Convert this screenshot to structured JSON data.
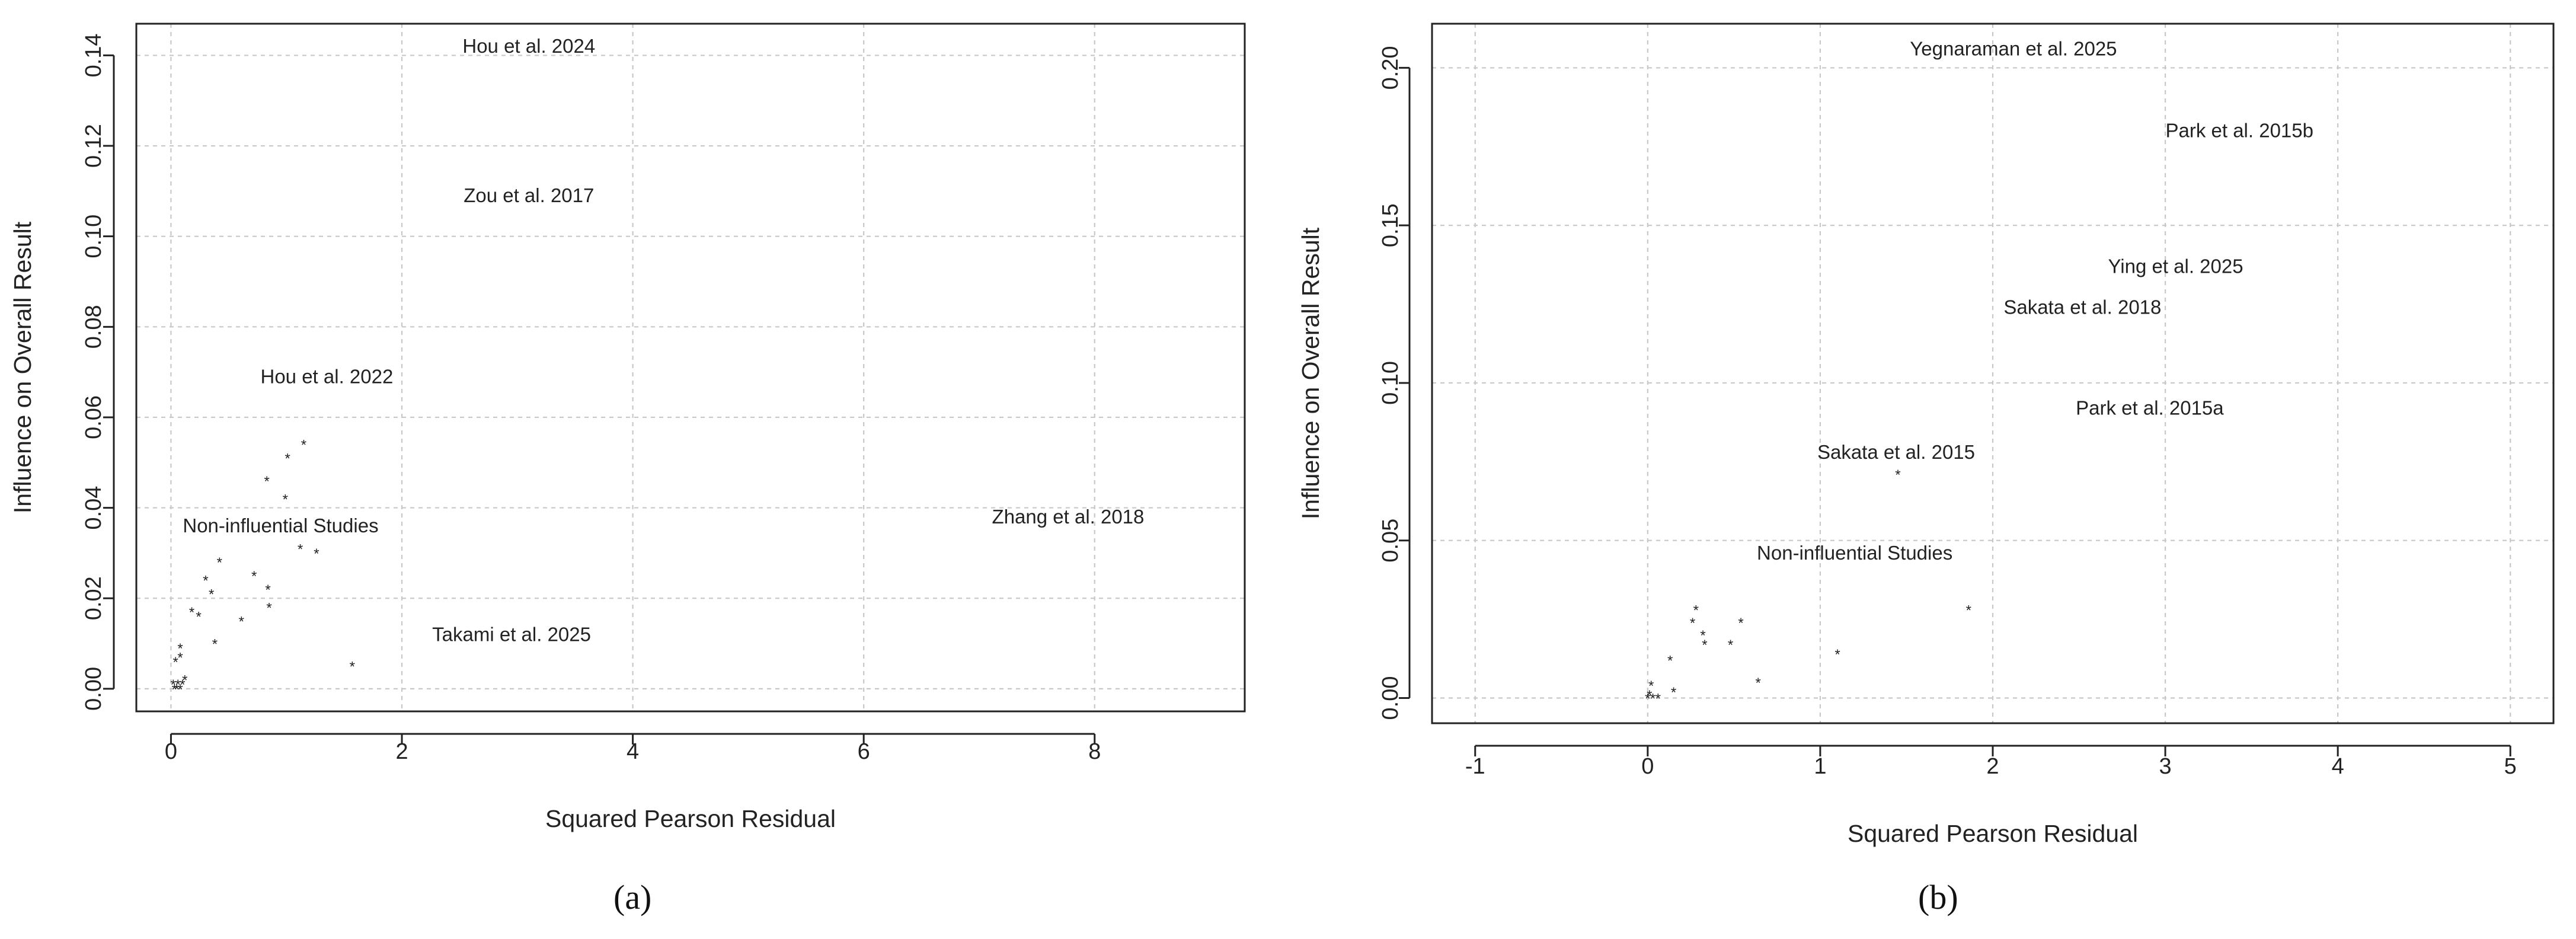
{
  "chart_data": [
    {
      "panel": "a",
      "type": "scatter",
      "panel_label": "(a)",
      "xlabel": "Squared Pearson Residual",
      "ylabel": "Influence on Overall Result",
      "xlim": [
        -0.3,
        9.3
      ],
      "ylim": [
        -0.005,
        0.147
      ],
      "xticks": [
        0,
        2,
        4,
        6,
        8
      ],
      "yticks": [
        0.0,
        0.02,
        0.04,
        0.06,
        0.08,
        0.1,
        0.12,
        0.14
      ],
      "xtick_labels": [
        "0",
        "2",
        "4",
        "6",
        "8"
      ],
      "ytick_labels": [
        "0.00",
        "0.02",
        "0.04",
        "0.06",
        "0.08",
        "0.10",
        "0.12",
        "0.14"
      ],
      "grid": true,
      "marker": "*",
      "points": [
        {
          "x": 0.02,
          "y": 0.001
        },
        {
          "x": 0.03,
          "y": 0.0
        },
        {
          "x": 0.05,
          "y": 0.0
        },
        {
          "x": 0.06,
          "y": 0.001
        },
        {
          "x": 0.08,
          "y": 0.0
        },
        {
          "x": 0.1,
          "y": 0.001
        },
        {
          "x": 0.12,
          "y": 0.002
        },
        {
          "x": 0.04,
          "y": 0.006
        },
        {
          "x": 0.08,
          "y": 0.007
        },
        {
          "x": 0.08,
          "y": 0.009
        },
        {
          "x": 0.18,
          "y": 0.017
        },
        {
          "x": 0.24,
          "y": 0.016
        },
        {
          "x": 0.3,
          "y": 0.024
        },
        {
          "x": 0.35,
          "y": 0.021
        },
        {
          "x": 0.38,
          "y": 0.01
        },
        {
          "x": 0.42,
          "y": 0.028
        },
        {
          "x": 0.61,
          "y": 0.015
        },
        {
          "x": 0.72,
          "y": 0.025
        },
        {
          "x": 0.83,
          "y": 0.046
        },
        {
          "x": 0.84,
          "y": 0.022
        },
        {
          "x": 0.85,
          "y": 0.018
        },
        {
          "x": 0.99,
          "y": 0.042
        },
        {
          "x": 1.01,
          "y": 0.051
        },
        {
          "x": 1.12,
          "y": 0.031
        },
        {
          "x": 1.15,
          "y": 0.054
        },
        {
          "x": 1.26,
          "y": 0.03
        },
        {
          "x": 1.57,
          "y": 0.005
        }
      ],
      "annotations": [
        {
          "label": "Hou et al. 2024",
          "x": 3.1,
          "y": 0.142
        },
        {
          "label": "Zou et al. 2017",
          "x": 3.1,
          "y": 0.109
        },
        {
          "label": "Hou et al. 2022",
          "x": 1.35,
          "y": 0.069
        },
        {
          "label": "Non-influential Studies",
          "x": 0.95,
          "y": 0.036
        },
        {
          "label": "Zhang et al. 2018",
          "x": 7.77,
          "y": 0.038
        },
        {
          "label": "Takami et al. 2025",
          "x": 2.95,
          "y": 0.012
        }
      ]
    },
    {
      "panel": "b",
      "type": "scatter",
      "panel_label": "(b)",
      "xlabel": "Squared Pearson Residual",
      "ylabel": "Influence on Overall Result",
      "xlim": [
        -1.25,
        5.25
      ],
      "ylim": [
        -0.008,
        0.214
      ],
      "xticks": [
        -1,
        0,
        1,
        2,
        3,
        4,
        5
      ],
      "yticks": [
        0.0,
        0.05,
        0.1,
        0.15,
        0.2
      ],
      "xtick_labels": [
        "-1",
        "0",
        "1",
        "2",
        "3",
        "4",
        "5"
      ],
      "ytick_labels": [
        "0.00",
        "0.05",
        "0.10",
        "0.15",
        "0.20"
      ],
      "grid": true,
      "marker": "*",
      "points": [
        {
          "x": 0.0,
          "y": 0.0
        },
        {
          "x": 0.01,
          "y": 0.001
        },
        {
          "x": 0.02,
          "y": 0.004
        },
        {
          "x": 0.03,
          "y": 0.0
        },
        {
          "x": 0.06,
          "y": 0.0
        },
        {
          "x": 0.13,
          "y": 0.012
        },
        {
          "x": 0.15,
          "y": 0.002
        },
        {
          "x": 0.26,
          "y": 0.024
        },
        {
          "x": 0.28,
          "y": 0.028
        },
        {
          "x": 0.32,
          "y": 0.02
        },
        {
          "x": 0.33,
          "y": 0.017
        },
        {
          "x": 0.48,
          "y": 0.017
        },
        {
          "x": 0.54,
          "y": 0.024
        },
        {
          "x": 0.64,
          "y": 0.005
        },
        {
          "x": 1.1,
          "y": 0.014
        },
        {
          "x": 1.45,
          "y": 0.071
        },
        {
          "x": 1.86,
          "y": 0.028
        }
      ],
      "annotations": [
        {
          "label": "Yegnaraman et al. 2025",
          "x": 2.12,
          "y": 0.206
        },
        {
          "label": "Park et al. 2015b",
          "x": 3.43,
          "y": 0.18
        },
        {
          "label": "Ying et al. 2025",
          "x": 3.06,
          "y": 0.137
        },
        {
          "label": "Sakata et al. 2018",
          "x": 2.52,
          "y": 0.124
        },
        {
          "label": "Park et al. 2015a",
          "x": 2.91,
          "y": 0.092
        },
        {
          "label": "Sakata et al. 2015",
          "x": 1.44,
          "y": 0.078
        },
        {
          "label": "Non-influential Studies",
          "x": 1.2,
          "y": 0.046
        }
      ]
    }
  ]
}
